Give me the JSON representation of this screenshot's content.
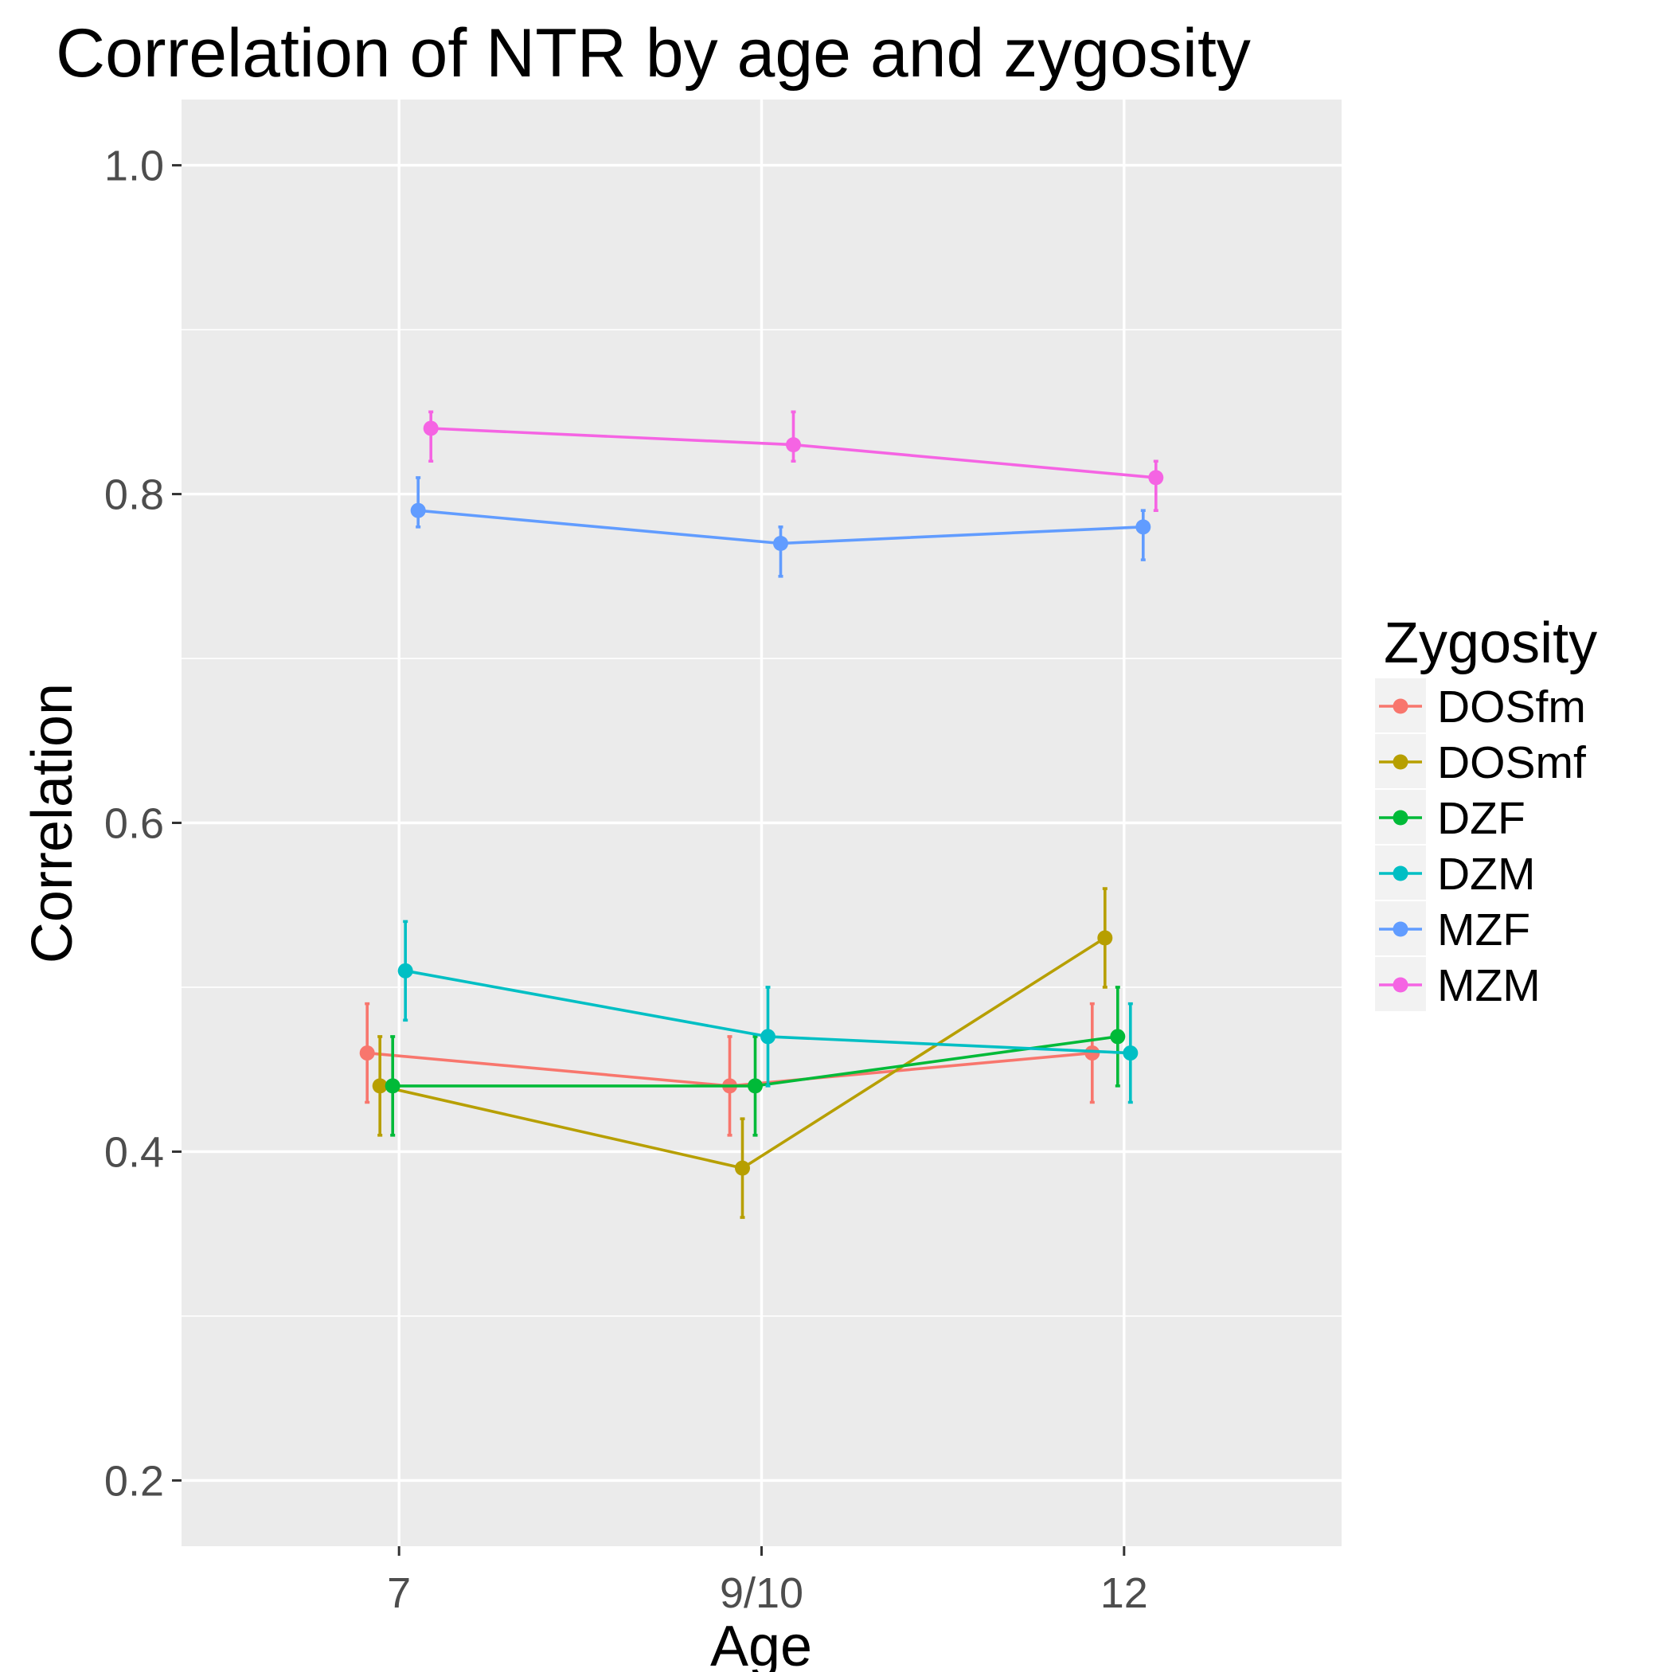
{
  "chart_data": {
    "type": "line",
    "title": "Correlation of NTR by age and zygosity",
    "xlabel": "Age",
    "ylabel": "Correlation",
    "categories": [
      "7",
      "9/10",
      "12"
    ],
    "ylim": [
      0.16,
      1.04
    ],
    "yticks": [
      0.2,
      0.4,
      0.6,
      0.8,
      1.0
    ],
    "ytick_labels": [
      "0.2",
      "0.4",
      "0.6",
      "0.8",
      "1.0"
    ],
    "grid": true,
    "legend": {
      "title": "Zygosity",
      "position": "right"
    },
    "series": [
      {
        "name": "DOSfm",
        "color": "#F8766D",
        "values": [
          0.46,
          0.44,
          0.46
        ],
        "lower": [
          0.43,
          0.41,
          0.43
        ],
        "upper": [
          0.49,
          0.47,
          0.49
        ]
      },
      {
        "name": "DOSmf",
        "color": "#B79F00",
        "values": [
          0.44,
          0.39,
          0.53
        ],
        "lower": [
          0.41,
          0.36,
          0.5
        ],
        "upper": [
          0.47,
          0.42,
          0.56
        ]
      },
      {
        "name": "DZF",
        "color": "#00BA38",
        "values": [
          0.44,
          0.44,
          0.47
        ],
        "lower": [
          0.41,
          0.41,
          0.44
        ],
        "upper": [
          0.47,
          0.47,
          0.5
        ]
      },
      {
        "name": "DZM",
        "color": "#00BFC4",
        "values": [
          0.51,
          0.47,
          0.46
        ],
        "lower": [
          0.48,
          0.44,
          0.43
        ],
        "upper": [
          0.54,
          0.5,
          0.49
        ]
      },
      {
        "name": "MZF",
        "color": "#619CFF",
        "values": [
          0.79,
          0.77,
          0.78
        ],
        "lower": [
          0.78,
          0.75,
          0.76
        ],
        "upper": [
          0.81,
          0.78,
          0.79
        ]
      },
      {
        "name": "MZM",
        "color": "#F564E3",
        "values": [
          0.84,
          0.83,
          0.81
        ],
        "lower": [
          0.82,
          0.82,
          0.79
        ],
        "upper": [
          0.85,
          0.85,
          0.82
        ]
      }
    ]
  }
}
